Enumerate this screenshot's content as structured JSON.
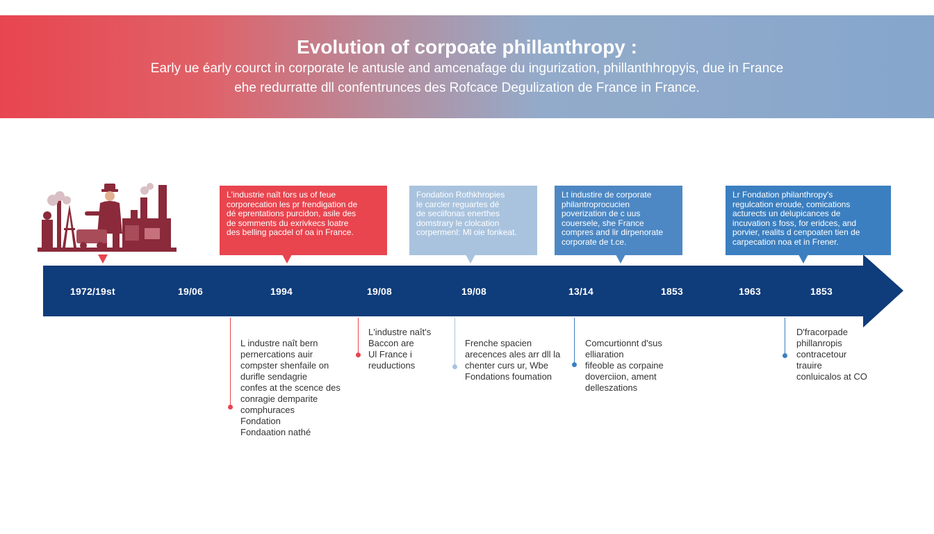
{
  "header": {
    "title": "Evolution of corpoate phillanthropy :",
    "subtitle_line1": "Early ue éarly courct in corporate le antusle and amcenafage du ingurization, phillanthhropyis, due in France",
    "subtitle_line2": "ehe redurratte dll confentrunces des Rofcace Degulization de France in France."
  },
  "colors": {
    "red": "#e8454f",
    "light_blue": "#a9c3de",
    "mid_blue": "#4d88c4",
    "blue": "#3b7fc0",
    "navy": "#0f3c7a",
    "factory": "#8a2a3a"
  },
  "illustration": {
    "icon": "factory-worker-icon"
  },
  "timeline": {
    "years": [
      "1972/19st",
      "19/06",
      "1994",
      "19/08",
      "19/08",
      "13/14",
      "1853",
      "1963",
      "1853"
    ]
  },
  "callouts": [
    {
      "lines": [
        "L'industrie naît fors us of feue",
        "corporecation les pr frendigation de",
        "dé eprentations purcidon, asile des",
        "de somments du exrivkecs loatre",
        "des belling pacdel of oa in France."
      ]
    },
    {
      "lines": [
        "Fondation Rothkhropies",
        "le carcler reguartes dé",
        "de seciifonas enerthes",
        "domstrary le clolcation",
        "corpermenl: Ml oie fonkeat."
      ]
    },
    {
      "lines": [
        "Lt industire de corporate",
        "philantroprocucien",
        "poverization de c uus",
        "couersele, she France",
        "compres and lir dirpenorate",
        "corporate de t.ce."
      ]
    },
    {
      "lines": [
        "Lr Fondation philanthropy's",
        "regulcation eroude, comications",
        "acturects un delupicances de",
        "incuvation s foss, for eridces, and",
        "porvier, realits d cenpoaten tien de",
        "carpecation noa et in Frener."
      ]
    }
  ],
  "notes": [
    {
      "lines": [
        "L industre naît bern",
        "pernercations auir",
        "compster shenfaile on",
        "durifle sendagrie",
        "confes at the scence des",
        "conragie demparite",
        "comphuraces",
        "Fondation",
        "Fondaation nathé"
      ]
    },
    {
      "lines": [
        "L'industre naît's",
        "Baccon are",
        "Ul France i",
        "reuductions"
      ]
    },
    {
      "lines": [
        "Frenche spacien",
        "arecences ales arr dll la",
        "chenter curs ur, Wbe",
        "Fondations foumation"
      ]
    },
    {
      "lines": [
        "Comcurtionnt d'sus",
        "elliaration",
        "fifeoble as corpaine",
        "doverciion, ament",
        "delleszations"
      ]
    },
    {
      "lines": [
        "D'fracorpade",
        "phillanropis",
        "contracetour",
        "trauire",
        "conluicalos at CO"
      ]
    }
  ]
}
